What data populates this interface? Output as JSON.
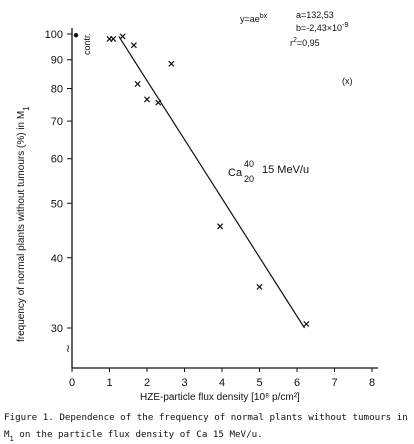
{
  "chart_data": {
    "type": "scatter",
    "xlabel": "HZE-particle flux density [10⁸ p/cm²]",
    "ylabel": "frequency of normal plants without tumours (%) in M",
    "ylabel_sub": "1",
    "yscale": "log",
    "xlim": [
      0,
      8
    ],
    "ylim": [
      30,
      100
    ],
    "x_ticks": [
      0,
      1,
      2,
      3,
      4,
      5,
      6,
      7,
      8
    ],
    "y_ticks": [
      30,
      40,
      50,
      60,
      70,
      80,
      90,
      100
    ],
    "axis_break_symbol": "≀",
    "grid": false,
    "series": [
      {
        "marker": "x",
        "points": [
          {
            "x": 1.0,
            "y": 98
          },
          {
            "x": 1.1,
            "y": 98
          },
          {
            "x": 1.35,
            "y": 99
          },
          {
            "x": 1.65,
            "y": 95.5
          },
          {
            "x": 1.75,
            "y": 81.5
          },
          {
            "x": 2.0,
            "y": 76.5
          },
          {
            "x": 2.3,
            "y": 75.5
          },
          {
            "x": 2.65,
            "y": 88.5
          },
          {
            "x": 3.95,
            "y": 45.5
          },
          {
            "x": 5.0,
            "y": 35.5
          },
          {
            "x": 6.25,
            "y": 30.5
          }
        ]
      }
    ],
    "control": {
      "x": 0.0,
      "y": 99.5,
      "label": "contr."
    },
    "fit_line": {
      "x": [
        1.25,
        6.2
      ],
      "y": [
        99,
        30
      ]
    },
    "annotations": {
      "equation": "y=ae",
      "equation_sup": "bx",
      "param_a": "a=132,53",
      "param_b": "b=-2,43×10",
      "param_b_sup": "-9",
      "r2": "r",
      "r2_sup": "2",
      "r2_value": "=0,95",
      "bracket_x": "(x)",
      "ion": "Ca",
      "ion_mass": "40",
      "ion_z": "20",
      "ion_energy": "15 MeV/u"
    }
  },
  "caption": {
    "line1": "Figure 1.  Dependence of the frequency of normal plants without tumours in",
    "line2_pre": "M",
    "line2_sub": "1",
    "line2_post": " on the particle flux density of Ca 15 MeV/u."
  }
}
